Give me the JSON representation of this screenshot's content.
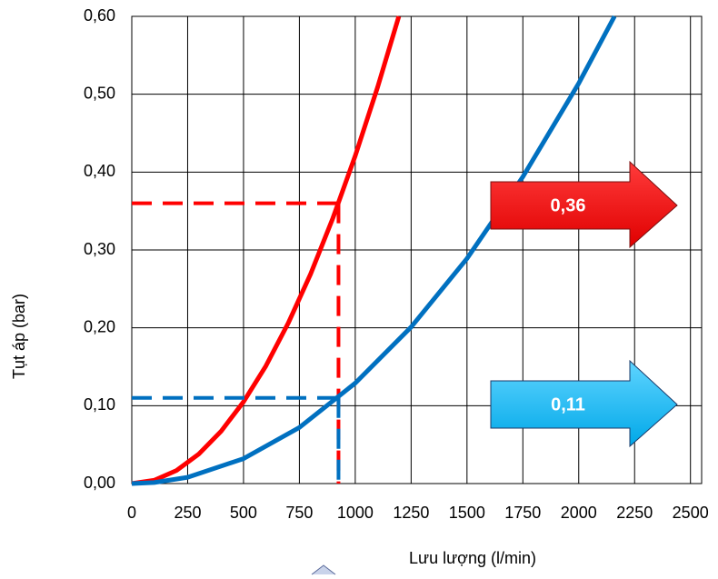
{
  "chart_data": {
    "type": "line",
    "xlabel": "Lưu lượng (l/min)",
    "ylabel": "Tụt áp (bar)",
    "xlim": [
      0,
      2550
    ],
    "ylim": [
      0,
      0.6
    ],
    "xticks": [
      0,
      250,
      500,
      750,
      1000,
      1250,
      1500,
      1750,
      2000,
      2250,
      2500
    ],
    "yticks": [
      {
        "value": 0,
        "label": "0,00"
      },
      {
        "value": 0.1,
        "label": "0,10"
      },
      {
        "value": 0.2,
        "label": "0,20"
      },
      {
        "value": 0.3,
        "label": "0,30"
      },
      {
        "value": 0.4,
        "label": "0,40"
      },
      {
        "value": 0.5,
        "label": "0,50"
      },
      {
        "value": 0.6,
        "label": "0,60"
      }
    ],
    "grid": true,
    "series": [
      {
        "color": "#ff0000",
        "x": [
          0,
          100,
          200,
          300,
          400,
          500,
          600,
          700,
          800,
          900,
          1000,
          1100,
          1195
        ],
        "values": [
          0,
          0.0042,
          0.0168,
          0.0379,
          0.0673,
          0.105,
          0.151,
          0.206,
          0.269,
          0.341,
          0.421,
          0.509,
          0.6
        ],
        "marker": {
          "x": 925,
          "y": 0.36,
          "label": "0,36"
        }
      },
      {
        "color": "#0070c0",
        "x": [
          0,
          100,
          250,
          500,
          750,
          1000,
          1250,
          1500,
          1750,
          2000,
          2160
        ],
        "values": [
          0,
          0.0013,
          0.008,
          0.032,
          0.072,
          0.129,
          0.201,
          0.289,
          0.394,
          0.514,
          0.6
        ],
        "marker": {
          "x": 925,
          "y": 0.11,
          "label": "0,11"
        }
      }
    ]
  }
}
